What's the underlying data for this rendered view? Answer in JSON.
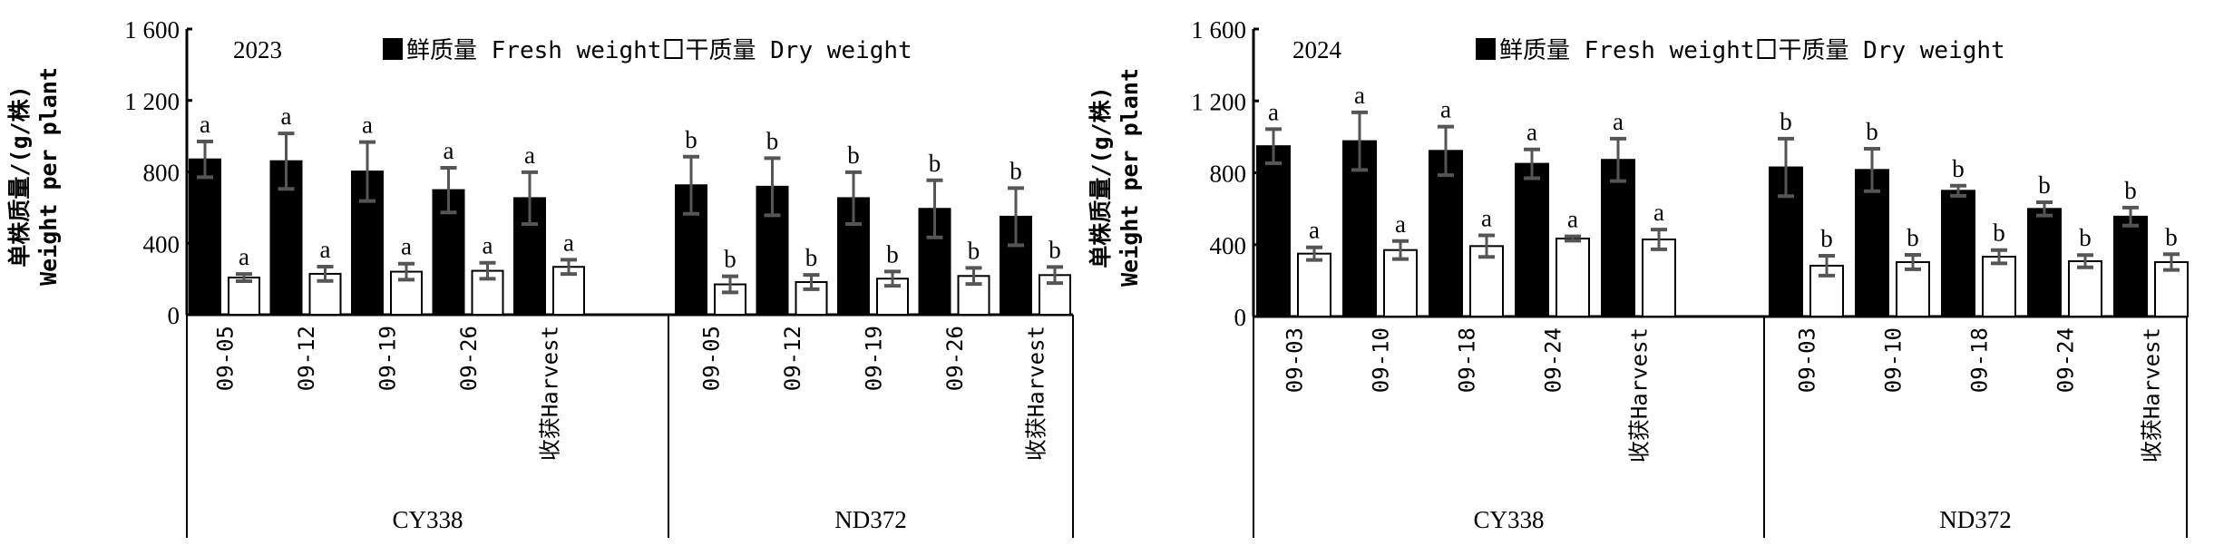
{
  "chart_data": [
    {
      "type": "bar",
      "title": "2023",
      "ylabel_cn": "单株质量/(g/株)",
      "ylabel_en": "Weight per plant",
      "ylim": [
        0,
        1600
      ],
      "yticks": [
        "0",
        "400",
        "800",
        "1 200",
        "1 600"
      ],
      "ytick_values": [
        0,
        400,
        800,
        1200,
        1600
      ],
      "legend": {
        "fresh": "鲜质量 Fresh weight",
        "dry": "干质量 Dry weight",
        "position": "top"
      },
      "groups": [
        {
          "name": "CY338",
          "categories": [
            "09-05",
            "09-12",
            "09-19",
            "09-26",
            "收获Harvest"
          ],
          "fresh": [
            870,
            860,
            802,
            698,
            653
          ],
          "fresh_err": [
            100,
            155,
            165,
            125,
            145
          ],
          "fresh_sig": [
            "a",
            "a",
            "a",
            "a",
            "a"
          ],
          "dry": [
            208,
            229,
            241,
            246,
            268
          ],
          "dry_err": [
            20,
            40,
            45,
            45,
            40
          ],
          "dry_sig": [
            "a",
            "a",
            "a",
            "a",
            "a"
          ]
        },
        {
          "name": "ND372",
          "categories": [
            "09-05",
            "09-12",
            "09-19",
            "09-26",
            "收获Harvest"
          ],
          "fresh": [
            725,
            717,
            653,
            593,
            549
          ],
          "fresh_err": [
            160,
            160,
            145,
            160,
            160
          ],
          "fresh_sig": [
            "b",
            "b",
            "b",
            "b",
            "b"
          ],
          "dry": [
            170,
            183,
            202,
            217,
            222
          ],
          "dry_err": [
            45,
            40,
            40,
            45,
            45
          ],
          "dry_sig": [
            "b",
            "b",
            "b",
            "b",
            "b"
          ]
        }
      ]
    },
    {
      "type": "bar",
      "title": "2024",
      "ylabel_cn": "单株质量/(g/株)",
      "ylabel_en": "Weight per plant",
      "ylim": [
        0,
        1600
      ],
      "yticks": [
        "0",
        "400",
        "800",
        "1 200",
        "1 600"
      ],
      "ytick_values": [
        0,
        400,
        800,
        1200,
        1600
      ],
      "legend": {
        "fresh": "鲜质量 Fresh weight",
        "dry": "干质量 Dry weight",
        "position": "top"
      },
      "groups": [
        {
          "name": "CY338",
          "categories": [
            "09-03",
            "09-10",
            "09-18",
            "09-24",
            "收获Harvest"
          ],
          "fresh": [
            948,
            976,
            922,
            850,
            872
          ],
          "fresh_err": [
            95,
            160,
            135,
            80,
            118
          ],
          "fresh_sig": [
            "a",
            "a",
            "a",
            "a",
            "a"
          ],
          "dry": [
            350,
            370,
            392,
            434,
            429
          ],
          "dry_err": [
            35,
            50,
            60,
            12,
            55
          ],
          "dry_sig": [
            "a",
            "a",
            "a",
            "a",
            "a"
          ]
        },
        {
          "name": "ND372",
          "categories": [
            "09-03",
            "09-10",
            "09-18",
            "09-24",
            "收获Harvest"
          ],
          "fresh": [
            830,
            816,
            700,
            599,
            556
          ],
          "fresh_err": [
            160,
            118,
            28,
            37,
            50
          ],
          "fresh_sig": [
            "b",
            "b",
            "b",
            "b",
            "b"
          ],
          "dry": [
            283,
            303,
            333,
            308,
            303
          ],
          "dry_err": [
            55,
            40,
            37,
            34,
            44
          ],
          "dry_sig": [
            "b",
            "b",
            "b",
            "b",
            "b"
          ]
        }
      ]
    }
  ],
  "colors": {
    "fresh": "#000000",
    "dry": "#ffffff",
    "error": "#555555"
  }
}
